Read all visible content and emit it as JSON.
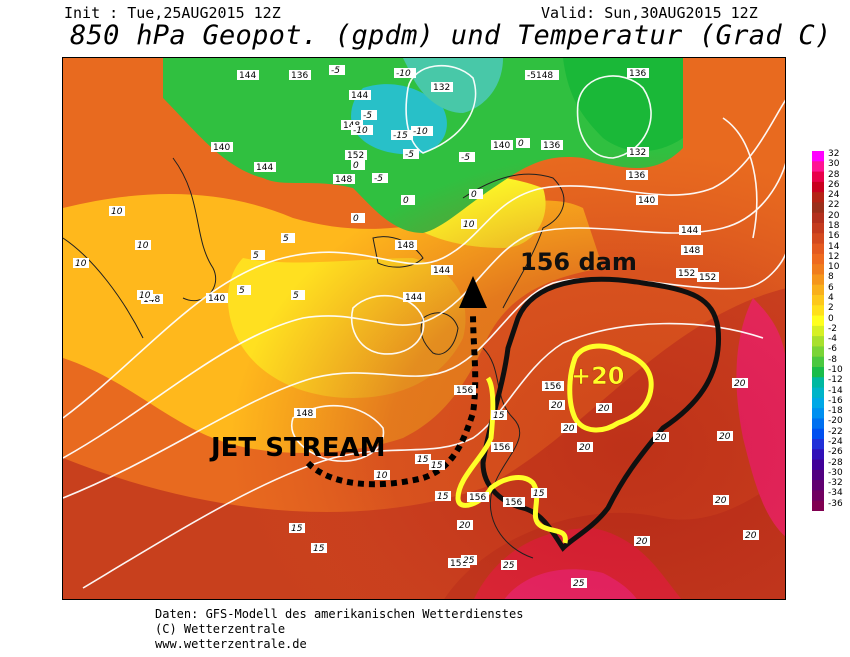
{
  "header": {
    "init": "Init : Tue,25AUG2015 12Z",
    "valid": "Valid: Sun,30AUG2015 12Z",
    "title": "850 hPa Geopot. (gpdm) und Temperatur (Grad C)"
  },
  "annotations": {
    "jet_stream": "JET STREAM",
    "dam_label": "156 dam",
    "temp_label": "+20"
  },
  "contour_labels": {
    "geopotential": [
      "144",
      "136",
      "132",
      "-5148",
      "136",
      "144",
      "148",
      "140",
      "136",
      "140",
      "144",
      "148",
      "152",
      "148",
      "144",
      "148",
      "140",
      "132",
      "136",
      "140",
      "144",
      "148",
      "152",
      "148",
      "144",
      "152",
      "156",
      "156",
      "156",
      "156",
      "156",
      "156"
    ],
    "temperature": [
      "-5",
      "-10",
      "-5",
      "-10",
      "-15",
      "-10",
      "-5",
      "-5",
      "0",
      "0",
      "0",
      "5",
      "5",
      "5",
      "5",
      "10",
      "10",
      "10",
      "10",
      "10",
      "10",
      "15",
      "15",
      "15",
      "15",
      "15",
      "15",
      "15",
      "20",
      "20",
      "20",
      "20",
      "20",
      "20",
      "20",
      "20",
      "20",
      "20",
      "20",
      "25",
      "25",
      "25",
      "-5",
      "0",
      "0"
    ]
  },
  "colorbar": {
    "ticks": [
      "32",
      "30",
      "28",
      "26",
      "24",
      "22",
      "20",
      "18",
      "16",
      "14",
      "12",
      "10",
      "8",
      "6",
      "4",
      "2",
      "0",
      "-2",
      "-4",
      "-6",
      "-8",
      "-10",
      "-12",
      "-14",
      "-16",
      "-18",
      "-20",
      "-22",
      "-24",
      "-26",
      "-28",
      "-30",
      "-32",
      "-34",
      "-36"
    ],
    "colors": [
      "#ff00ff",
      "#ff1493",
      "#e8004a",
      "#c8001e",
      "#b42314",
      "#9a2f1a",
      "#b3301d",
      "#c43b1e",
      "#d44a1f",
      "#e45a20",
      "#ee6a1f",
      "#f07d1d",
      "#f5961c",
      "#f9b01c",
      "#fdc81c",
      "#ffe01c",
      "#ffff1f",
      "#d6f025",
      "#a8e02e",
      "#7ad437",
      "#4bc840",
      "#1abc4a",
      "#00b8a0",
      "#00b4c8",
      "#00a8e6",
      "#0090f0",
      "#0070f0",
      "#0050f0",
      "#2030d8",
      "#3010b8",
      "#400098",
      "#500080",
      "#600070",
      "#700060",
      "#800050"
    ]
  },
  "credits": {
    "line1": "Daten: GFS-Modell des amerikanischen Wetterdienstes",
    "line2": "(C) Wetterzentrale",
    "line3": "www.wetterzentrale.de"
  }
}
